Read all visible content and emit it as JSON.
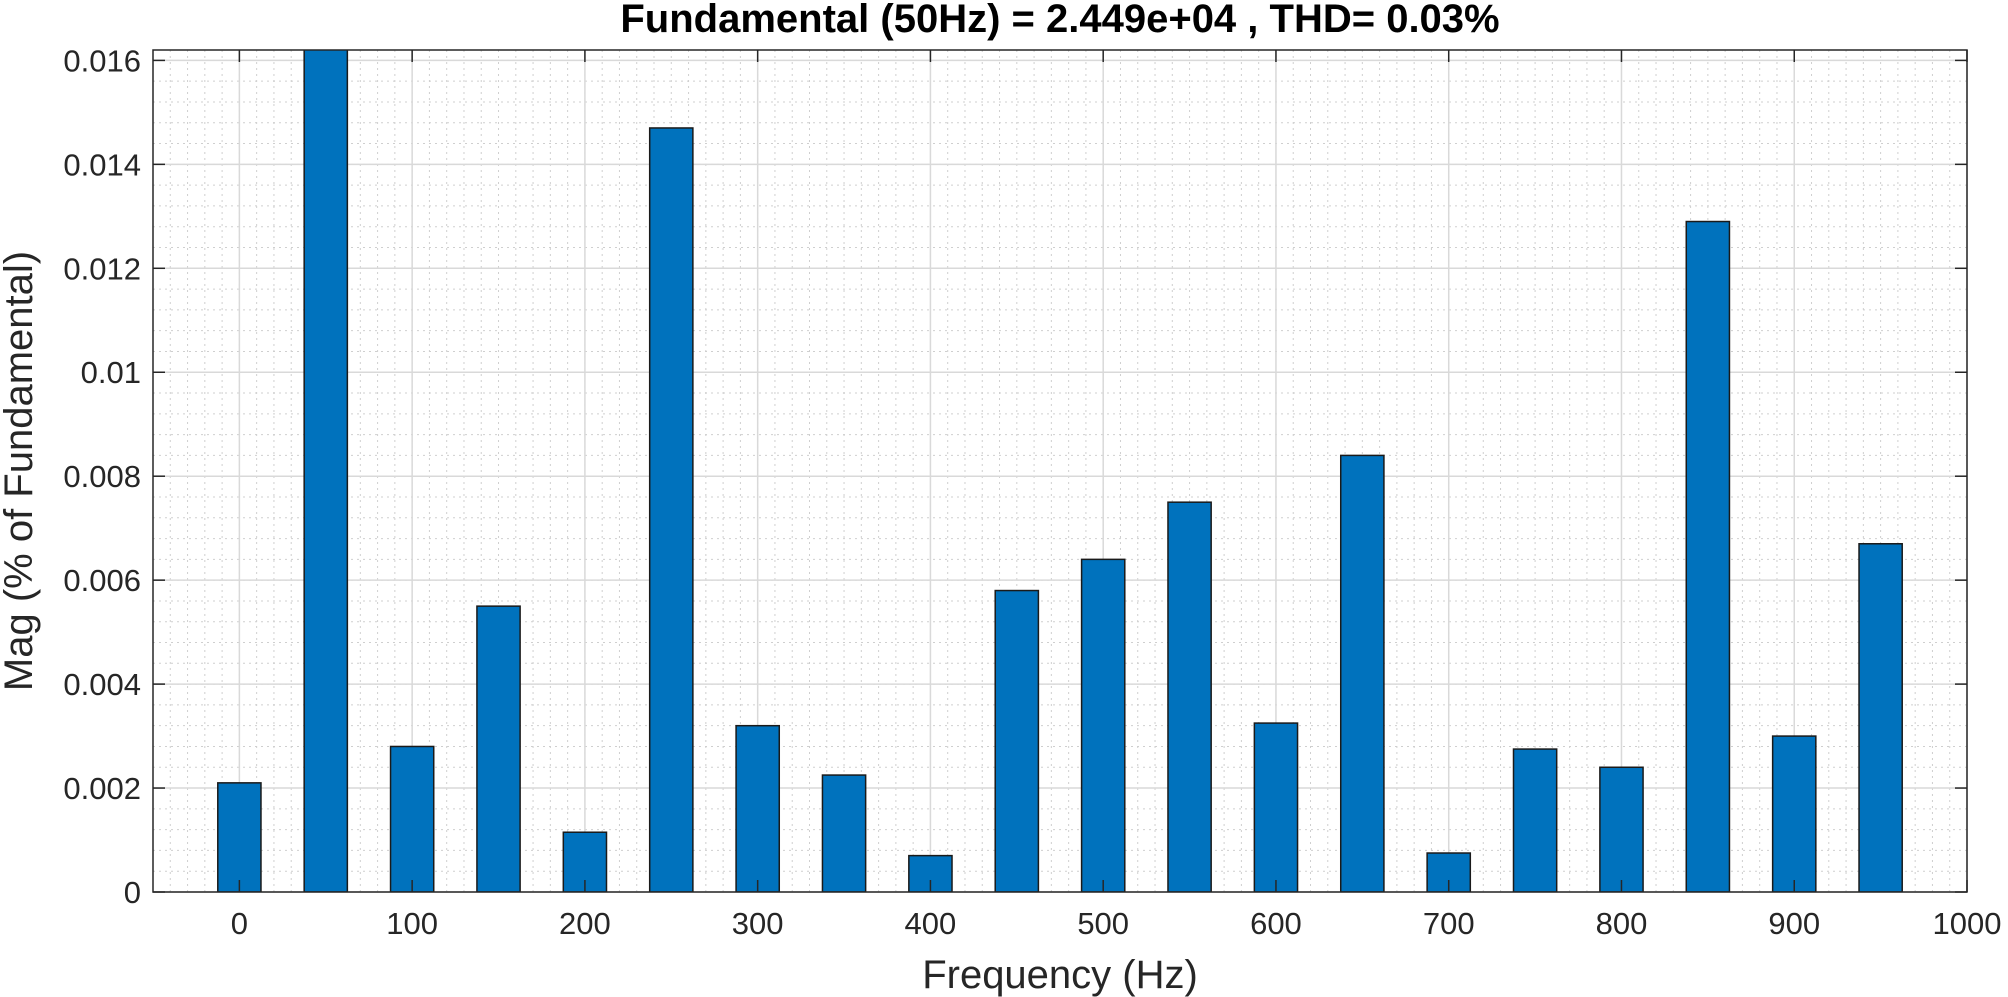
{
  "chart_data": {
    "type": "bar",
    "title": "Fundamental (50Hz) = 2.449e+04 , THD= 0.03%",
    "xlabel": "Frequency (Hz)",
    "ylabel": "Mag (% of Fundamental)",
    "xlim": [
      -50,
      1000
    ],
    "ylim": [
      0,
      0.0162
    ],
    "xticks": [
      0,
      100,
      200,
      300,
      400,
      500,
      600,
      700,
      800,
      900,
      1000
    ],
    "xtick_labels": [
      "0",
      "100",
      "200",
      "300",
      "400",
      "500",
      "600",
      "700",
      "800",
      "900",
      "1000"
    ],
    "yticks": [
      0,
      0.002,
      0.004,
      0.006,
      0.008,
      0.01,
      0.012,
      0.014,
      0.016
    ],
    "ytick_labels": [
      "0",
      "0.002",
      "0.004",
      "0.006",
      "0.008",
      "0.01",
      "0.012",
      "0.014",
      "0.016"
    ],
    "grid": true,
    "minor_grid": true,
    "bar_width": 25,
    "bar_color": "#0072BD",
    "x": [
      0,
      50,
      100,
      150,
      200,
      250,
      300,
      350,
      400,
      450,
      500,
      550,
      600,
      650,
      700,
      750,
      800,
      850,
      900,
      950
    ],
    "values": [
      0.0021,
      0.0165,
      0.0028,
      0.0055,
      0.00115,
      0.0147,
      0.0032,
      0.00225,
      0.0007,
      0.0058,
      0.0064,
      0.0075,
      0.00325,
      0.0084,
      0.00075,
      0.00275,
      0.0024,
      0.0129,
      0.003,
      0.0067
    ]
  }
}
